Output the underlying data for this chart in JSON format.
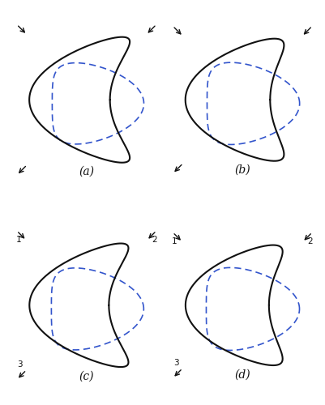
{
  "background_color": "#ffffff",
  "solid_color": "#111111",
  "dashed_color": "#3355cc",
  "subfig_labels": [
    "(a)",
    "(b)",
    "(c)",
    "(d)"
  ],
  "label_fontsize": 10,
  "lw_solid": 1.5,
  "lw_dashed": 1.2,
  "dash_pattern": [
    5,
    3
  ],
  "arrow_mutation_scale": 9,
  "arrow_lw": 1.0
}
